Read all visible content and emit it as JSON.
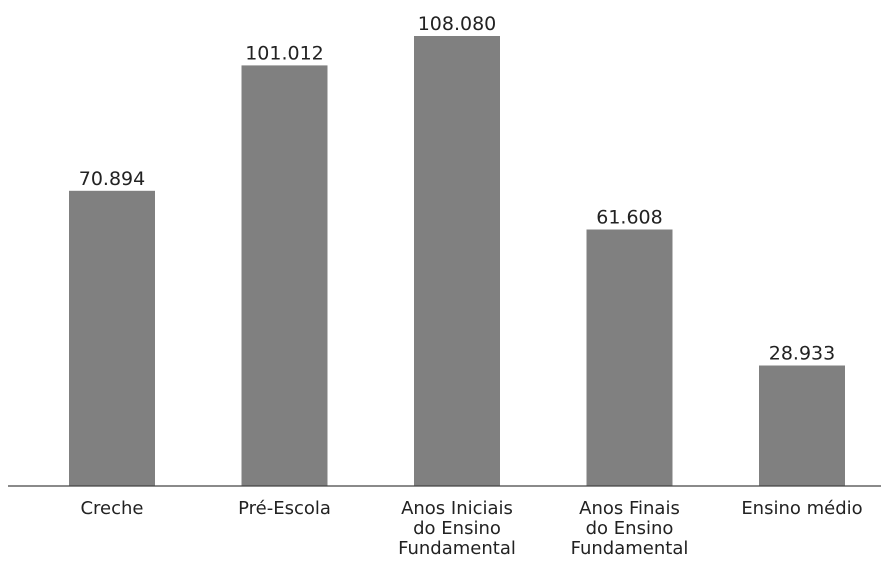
{
  "chart_data": {
    "type": "bar",
    "categories": [
      "Creche",
      "Pré-Escola",
      "Anos Iniciais do Ensino Fundamental",
      "Anos Finais do Ensino Fundamental",
      "Ensino médio"
    ],
    "category_label_lines": [
      [
        "Creche"
      ],
      [
        "Pré-Escola"
      ],
      [
        "Anos Iniciais",
        "do Ensino",
        "Fundamental"
      ],
      [
        "Anos Finais",
        "do Ensino",
        "Fundamental"
      ],
      [
        "Ensino médio"
      ]
    ],
    "values": [
      70894,
      101012,
      108080,
      61608,
      28933
    ],
    "value_labels": [
      "70.894",
      "101.012",
      "108.080",
      "61.608",
      "28.933"
    ],
    "title": "",
    "xlabel": "",
    "ylabel": "",
    "ylim": [
      0,
      108080
    ],
    "grid": false,
    "legend": "none",
    "bar_color": "#808080",
    "axis_color": "#444444",
    "text_color": "#222222"
  }
}
